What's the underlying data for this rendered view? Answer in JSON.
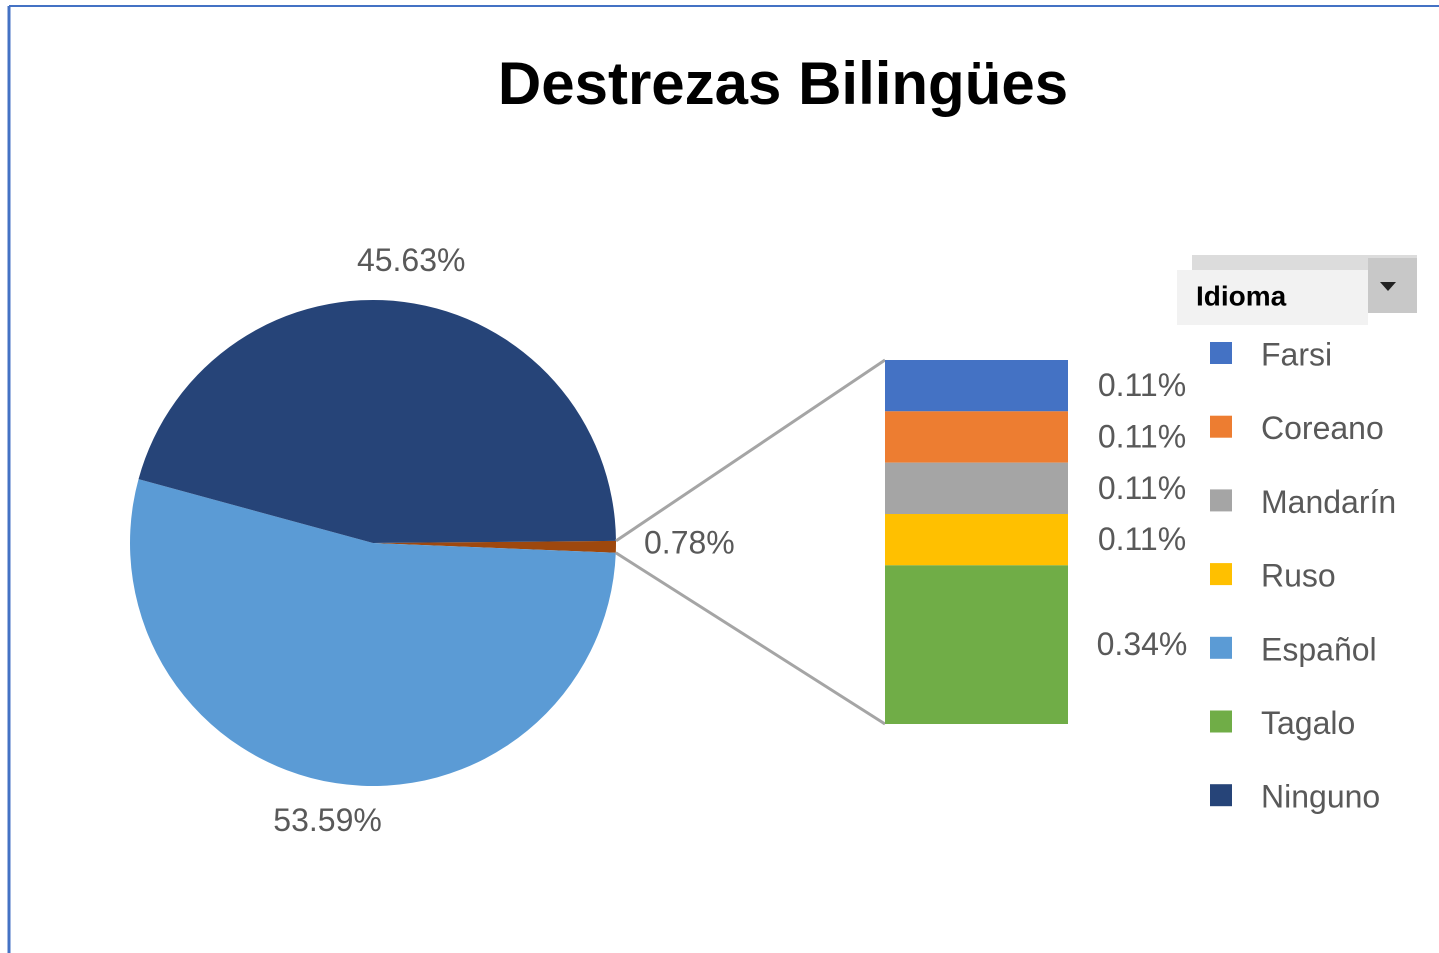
{
  "chart_data": {
    "type": "pie-of-bar",
    "title": "Destrezas Bilingües",
    "legend_title": "Idioma",
    "slices": [
      {
        "name": "Farsi",
        "color": "#4472c4",
        "value": 0.11,
        "value_label": "0.11%",
        "plot": "bar"
      },
      {
        "name": "Coreano",
        "color": "#ed7d31",
        "value": 0.11,
        "value_label": "0.11%",
        "plot": "bar"
      },
      {
        "name": "Mandarín",
        "color": "#a5a5a5",
        "value": 0.11,
        "value_label": "0.11%",
        "plot": "bar"
      },
      {
        "name": "Ruso",
        "color": "#ffc000",
        "value": 0.11,
        "value_label": "0.11%",
        "plot": "bar"
      },
      {
        "name": "Español",
        "color": "#5b9bd5",
        "value": 53.59,
        "value_label": "53.59%",
        "plot": "pie"
      },
      {
        "name": "Tagalo",
        "color": "#70ad47",
        "value": 0.34,
        "value_label": "0.34%",
        "plot": "bar"
      },
      {
        "name": "Ninguno",
        "color": "#264478",
        "value": 45.63,
        "value_label": "45.63%",
        "plot": "pie"
      }
    ],
    "other": {
      "value": 0.78,
      "label": "0.78%",
      "color": "#9e480e"
    }
  }
}
